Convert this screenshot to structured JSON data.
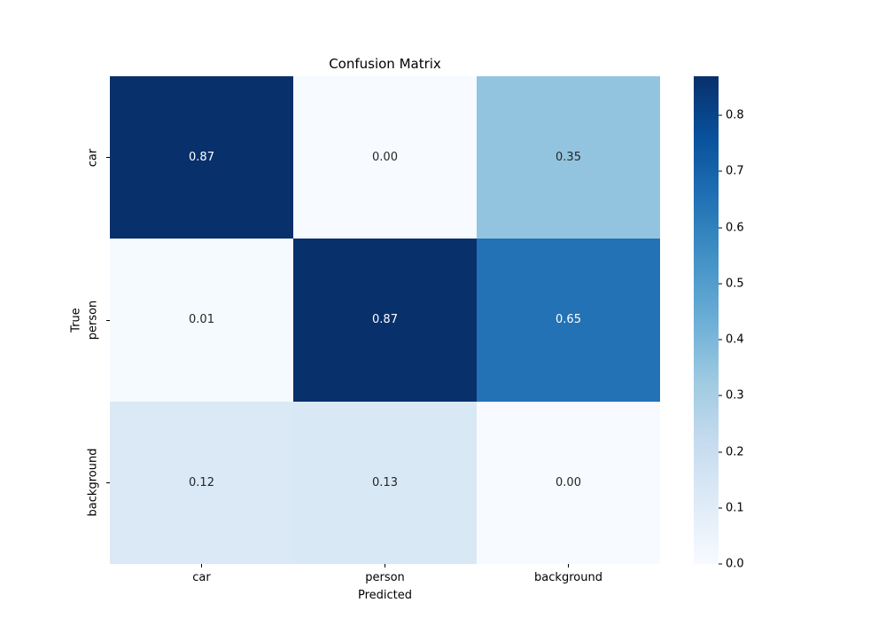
{
  "figure": {
    "background": "#ffffff"
  },
  "chart_data": {
    "type": "heatmap",
    "title": "Confusion Matrix",
    "xlabel": "Predicted",
    "ylabel": "True",
    "x_categories": [
      "car",
      "person",
      "background"
    ],
    "y_categories": [
      "car",
      "person",
      "background"
    ],
    "matrix": [
      [
        0.87,
        0.0,
        0.35
      ],
      [
        0.01,
        0.87,
        0.65
      ],
      [
        0.12,
        0.13,
        0.0
      ]
    ],
    "cell_labels": [
      [
        "0.87",
        "0.00",
        "0.35"
      ],
      [
        "0.01",
        "0.87",
        "0.65"
      ],
      [
        "0.12",
        "0.13",
        "0.00"
      ]
    ],
    "cell_colors": [
      [
        "#08306b",
        "#f7fbff",
        "#93c4df"
      ],
      [
        "#f5fafe",
        "#08306b",
        "#2272b5"
      ],
      [
        "#dbe9f6",
        "#d9e8f5",
        "#f7fbff"
      ]
    ],
    "cell_text_colors": [
      [
        "#ffffff",
        "#262626",
        "#262626"
      ],
      [
        "#262626",
        "#ffffff",
        "#ffffff"
      ],
      [
        "#262626",
        "#262626",
        "#262626"
      ]
    ],
    "colormap": "Blues",
    "vmin": 0.0,
    "vmax": 0.87,
    "grid": false,
    "legend_position": "right-colorbar",
    "colorbar": {
      "vmax": 0.87,
      "gradient": [
        "#f7fbff",
        "#deebf7",
        "#c6dbef",
        "#9ecae1",
        "#6baed6",
        "#4292c6",
        "#2171b5",
        "#08519c",
        "#08306b"
      ],
      "ticks": [
        {
          "label": "0.0",
          "value": 0.0
        },
        {
          "label": "0.1",
          "value": 0.1
        },
        {
          "label": "0.2",
          "value": 0.2
        },
        {
          "label": "0.3",
          "value": 0.3
        },
        {
          "label": "0.4",
          "value": 0.4
        },
        {
          "label": "0.5",
          "value": 0.5
        },
        {
          "label": "0.6",
          "value": 0.6
        },
        {
          "label": "0.7",
          "value": 0.7
        },
        {
          "label": "0.8",
          "value": 0.8
        }
      ]
    }
  }
}
